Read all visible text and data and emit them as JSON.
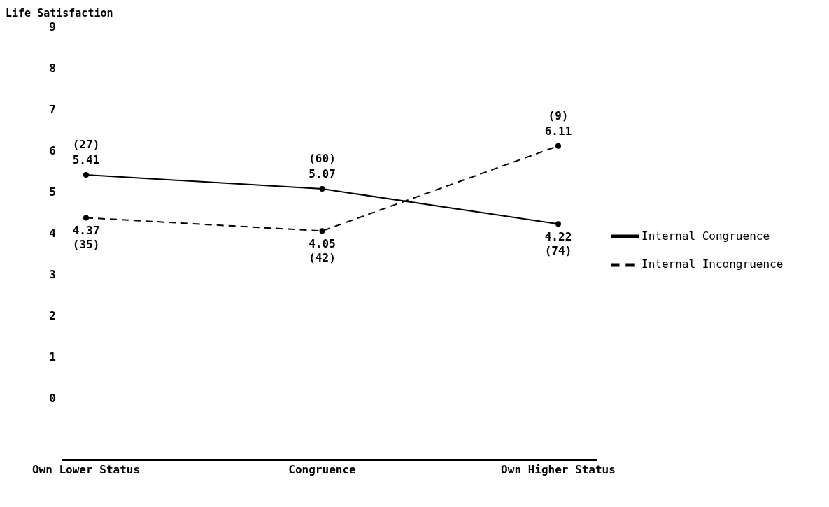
{
  "chart_data": {
    "type": "line",
    "ylabel": "Life Satisfaction",
    "categories": [
      "Own Lower Status",
      "Congruence",
      "Own Higher Status"
    ],
    "series": [
      {
        "name": "Internal Congruence",
        "color": "#000000",
        "values": [
          5.41,
          5.07,
          4.22
        ],
        "line_style": "solid"
      },
      {
        "name": "Internal Incongruence",
        "color": "#000000",
        "values": [
          4.37,
          4.05,
          6.11
        ],
        "line_style": "dashed"
      }
    ],
    "ylim": [
      -1.5,
      9
    ],
    "yticks": [
      0,
      1,
      2,
      3,
      4,
      5,
      6,
      7,
      8,
      9
    ],
    "grid": false,
    "legend": "right",
    "marker": "circle",
    "data_labels": true,
    "annotations": [
      {
        "text": "(27)",
        "x": "Own Lower Status",
        "y": 5.41
      },
      {
        "text": "(35)",
        "x": "Own Lower Status",
        "y": 4.37
      },
      {
        "text": "(60)",
        "x": "Congruence",
        "y": 5.07
      },
      {
        "text": "(42)",
        "x": "Congruence",
        "y": 4.05
      },
      {
        "text": "(9)",
        "x": "Own Higher Status",
        "y": 6.11
      },
      {
        "text": "(74)",
        "x": "Own Higher Status",
        "y": 4.22
      }
    ]
  }
}
